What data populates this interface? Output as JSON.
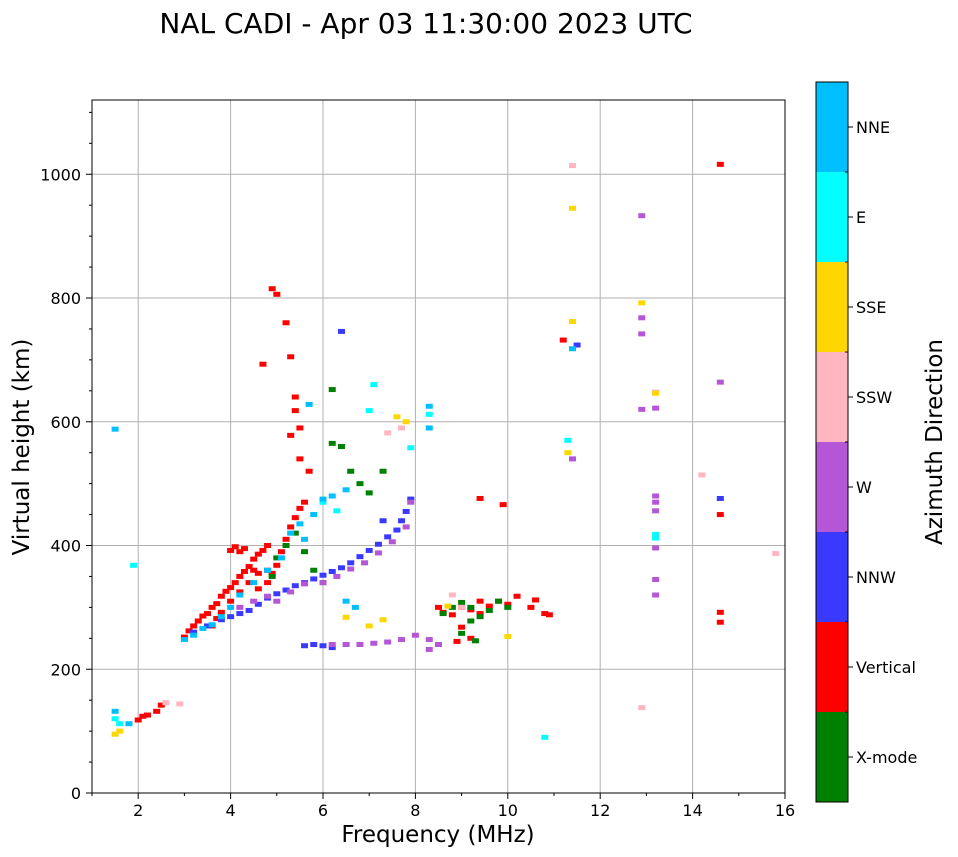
{
  "colors": {
    "X-mode": "#008000",
    "Vertical": "#ff0000",
    "NNW": "#3a3aff",
    "W": "#b556d6",
    "SSW": "#ffb6c1",
    "SSE": "#ffd700",
    "E": "#00ffff",
    "NNE": "#00bfff"
  },
  "chart_data": {
    "type": "scatter",
    "title": "NAL CADI - Apr 03 11:30:00 2023 UTC",
    "xlabel": "Frequency (MHz)",
    "ylabel": "Virtual height (km)",
    "xlim": [
      1,
      16
    ],
    "ylim": [
      0,
      1120
    ],
    "xticks": [
      2,
      4,
      6,
      8,
      10,
      12,
      14,
      16
    ],
    "yticks": [
      0,
      200,
      400,
      600,
      800,
      1000
    ],
    "grid": true,
    "colorbar": {
      "label": "Azimuth Direction",
      "categories": [
        "X-mode",
        "Vertical",
        "NNW",
        "W",
        "SSW",
        "SSE",
        "E",
        "NNE"
      ]
    },
    "series": [
      {
        "name": "Vertical",
        "points": [
          [
            2.0,
            118
          ],
          [
            2.1,
            124
          ],
          [
            2.2,
            126
          ],
          [
            2.4,
            132
          ],
          [
            2.5,
            142
          ],
          [
            3.0,
            252
          ],
          [
            3.1,
            262
          ],
          [
            3.2,
            270
          ],
          [
            3.3,
            278
          ],
          [
            3.4,
            286
          ],
          [
            3.5,
            290
          ],
          [
            3.6,
            300
          ],
          [
            3.7,
            306
          ],
          [
            3.8,
            318
          ],
          [
            3.9,
            326
          ],
          [
            4.0,
            332
          ],
          [
            4.1,
            340
          ],
          [
            4.2,
            350
          ],
          [
            4.3,
            358
          ],
          [
            4.4,
            366
          ],
          [
            4.5,
            378
          ],
          [
            4.6,
            386
          ],
          [
            4.7,
            392
          ],
          [
            4.8,
            400
          ],
          [
            4.0,
            392
          ],
          [
            4.1,
            398
          ],
          [
            4.2,
            390
          ],
          [
            4.3,
            395
          ],
          [
            4.5,
            360
          ],
          [
            4.6,
            330
          ],
          [
            4.8,
            340
          ],
          [
            4.9,
            355
          ],
          [
            5.0,
            368
          ],
          [
            5.1,
            390
          ],
          [
            5.2,
            410
          ],
          [
            5.3,
            430
          ],
          [
            5.4,
            445
          ],
          [
            5.5,
            460
          ],
          [
            5.6,
            470
          ],
          [
            5.7,
            520
          ],
          [
            3.6,
            270
          ],
          [
            3.7,
            282
          ],
          [
            3.8,
            292
          ],
          [
            4.0,
            310
          ],
          [
            4.2,
            325
          ],
          [
            4.4,
            340
          ],
          [
            4.6,
            355
          ],
          [
            4.8,
            360
          ],
          [
            4.7,
            693
          ],
          [
            4.9,
            815
          ],
          [
            5.0,
            806
          ],
          [
            5.2,
            760
          ],
          [
            5.3,
            705
          ],
          [
            5.4,
            640
          ],
          [
            5.4,
            618
          ],
          [
            5.5,
            590
          ],
          [
            5.3,
            578
          ],
          [
            5.5,
            540
          ],
          [
            8.5,
            300
          ],
          [
            8.6,
            292
          ],
          [
            8.8,
            288
          ],
          [
            9.0,
            300
          ],
          [
            9.2,
            296
          ],
          [
            9.4,
            290
          ],
          [
            9.6,
            302
          ],
          [
            9.8,
            310
          ],
          [
            10.0,
            305
          ],
          [
            10.2,
            318
          ],
          [
            10.5,
            300
          ],
          [
            10.6,
            312
          ],
          [
            10.8,
            290
          ],
          [
            10.9,
            288
          ],
          [
            9.4,
            310
          ],
          [
            9.0,
            268
          ],
          [
            8.9,
            245
          ],
          [
            9.2,
            250
          ],
          [
            9.9,
            466
          ],
          [
            9.4,
            476
          ],
          [
            11.2,
            732
          ],
          [
            14.6,
            1016
          ],
          [
            14.6,
            450
          ],
          [
            14.6,
            292
          ],
          [
            14.6,
            276
          ]
        ]
      },
      {
        "name": "X-mode",
        "points": [
          [
            4.9,
            350
          ],
          [
            5.0,
            380
          ],
          [
            5.2,
            400
          ],
          [
            5.4,
            420
          ],
          [
            5.6,
            390
          ],
          [
            5.8,
            360
          ],
          [
            6.0,
            340
          ],
          [
            6.2,
            652
          ],
          [
            6.2,
            565
          ],
          [
            6.4,
            560
          ],
          [
            6.6,
            520
          ],
          [
            6.8,
            500
          ],
          [
            7.0,
            485
          ],
          [
            7.3,
            520
          ],
          [
            8.6,
            290
          ],
          [
            8.8,
            300
          ],
          [
            9.0,
            308
          ],
          [
            9.2,
            300
          ],
          [
            9.4,
            285
          ],
          [
            9.6,
            295
          ],
          [
            9.8,
            310
          ],
          [
            10.0,
            300
          ],
          [
            9.2,
            278
          ],
          [
            9.0,
            258
          ],
          [
            9.3,
            246
          ]
        ]
      },
      {
        "name": "NNW",
        "points": [
          [
            3.2,
            260
          ],
          [
            3.5,
            270
          ],
          [
            3.8,
            280
          ],
          [
            4.0,
            285
          ],
          [
            4.2,
            290
          ],
          [
            4.4,
            295
          ],
          [
            4.6,
            305
          ],
          [
            4.8,
            315
          ],
          [
            5.0,
            322
          ],
          [
            5.2,
            328
          ],
          [
            5.4,
            335
          ],
          [
            5.6,
            340
          ],
          [
            5.8,
            346
          ],
          [
            6.0,
            352
          ],
          [
            6.2,
            358
          ],
          [
            6.4,
            364
          ],
          [
            6.6,
            372
          ],
          [
            6.8,
            382
          ],
          [
            7.0,
            392
          ],
          [
            7.2,
            402
          ],
          [
            7.4,
            414
          ],
          [
            7.6,
            425
          ],
          [
            7.7,
            440
          ],
          [
            7.8,
            455
          ],
          [
            7.9,
            475
          ],
          [
            5.6,
            238
          ],
          [
            5.8,
            240
          ],
          [
            6.0,
            238
          ],
          [
            6.2,
            235
          ],
          [
            6.4,
            746
          ],
          [
            7.3,
            440
          ],
          [
            14.6,
            476
          ],
          [
            11.5,
            724
          ]
        ]
      },
      {
        "name": "W",
        "points": [
          [
            4.2,
            300
          ],
          [
            4.5,
            310
          ],
          [
            4.8,
            318
          ],
          [
            5.0,
            310
          ],
          [
            5.3,
            325
          ],
          [
            5.6,
            338
          ],
          [
            6.0,
            340
          ],
          [
            6.3,
            350
          ],
          [
            6.6,
            362
          ],
          [
            6.9,
            372
          ],
          [
            7.2,
            388
          ],
          [
            7.5,
            406
          ],
          [
            7.8,
            430
          ],
          [
            7.9,
            470
          ],
          [
            6.2,
            240
          ],
          [
            6.5,
            240
          ],
          [
            6.8,
            240
          ],
          [
            7.1,
            242
          ],
          [
            7.4,
            244
          ],
          [
            7.7,
            248
          ],
          [
            8.0,
            255
          ],
          [
            8.3,
            248
          ],
          [
            8.5,
            240
          ],
          [
            8.3,
            232
          ],
          [
            11.4,
            540
          ],
          [
            12.9,
            933
          ],
          [
            12.9,
            768
          ],
          [
            12.9,
            742
          ],
          [
            12.9,
            620
          ],
          [
            13.2,
            480
          ],
          [
            13.2,
            470
          ],
          [
            13.2,
            456
          ],
          [
            13.2,
            345
          ],
          [
            13.2,
            320
          ],
          [
            13.2,
            396
          ],
          [
            14.6,
            664
          ],
          [
            13.2,
            622
          ]
        ]
      },
      {
        "name": "SSW",
        "points": [
          [
            2.6,
            146
          ],
          [
            2.9,
            144
          ],
          [
            7.4,
            582
          ],
          [
            7.7,
            590
          ],
          [
            8.8,
            320
          ],
          [
            9.0,
            300
          ],
          [
            11.4,
            1014
          ],
          [
            14.2,
            514
          ],
          [
            15.8,
            387
          ],
          [
            12.9,
            138
          ],
          [
            13.2,
            648
          ]
        ]
      },
      {
        "name": "SSE",
        "points": [
          [
            1.5,
            95
          ],
          [
            1.6,
            100
          ],
          [
            6.5,
            284
          ],
          [
            7.0,
            270
          ],
          [
            7.3,
            280
          ],
          [
            7.6,
            608
          ],
          [
            7.8,
            600
          ],
          [
            11.3,
            550
          ],
          [
            11.4,
            945
          ],
          [
            11.4,
            762
          ],
          [
            12.9,
            792
          ],
          [
            13.2,
            646
          ],
          [
            10.0,
            253
          ],
          [
            8.7,
            302
          ]
        ]
      },
      {
        "name": "E",
        "points": [
          [
            1.5,
            120
          ],
          [
            1.6,
            112
          ],
          [
            1.9,
            368
          ],
          [
            6.0,
            470
          ],
          [
            6.3,
            456
          ],
          [
            7.1,
            660
          ],
          [
            7.9,
            558
          ],
          [
            8.3,
            612
          ],
          [
            10.8,
            90
          ],
          [
            11.3,
            570
          ],
          [
            13.2,
            418
          ],
          [
            13.2,
            412
          ],
          [
            7.0,
            618
          ]
        ]
      },
      {
        "name": "NNE",
        "points": [
          [
            1.5,
            132
          ],
          [
            1.8,
            112
          ],
          [
            3.0,
            248
          ],
          [
            3.2,
            255
          ],
          [
            3.4,
            266
          ],
          [
            3.6,
            272
          ],
          [
            3.8,
            285
          ],
          [
            4.0,
            300
          ],
          [
            4.2,
            320
          ],
          [
            4.5,
            340
          ],
          [
            4.8,
            360
          ],
          [
            5.1,
            380
          ],
          [
            5.3,
            420
          ],
          [
            5.5,
            435
          ],
          [
            5.6,
            410
          ],
          [
            5.8,
            450
          ],
          [
            6.0,
            475
          ],
          [
            6.2,
            480
          ],
          [
            6.5,
            490
          ],
          [
            6.5,
            310
          ],
          [
            6.7,
            300
          ],
          [
            5.7,
            628
          ],
          [
            8.3,
            625
          ],
          [
            8.3,
            590
          ],
          [
            1.5,
            588
          ],
          [
            11.4,
            718
          ]
        ]
      }
    ]
  }
}
